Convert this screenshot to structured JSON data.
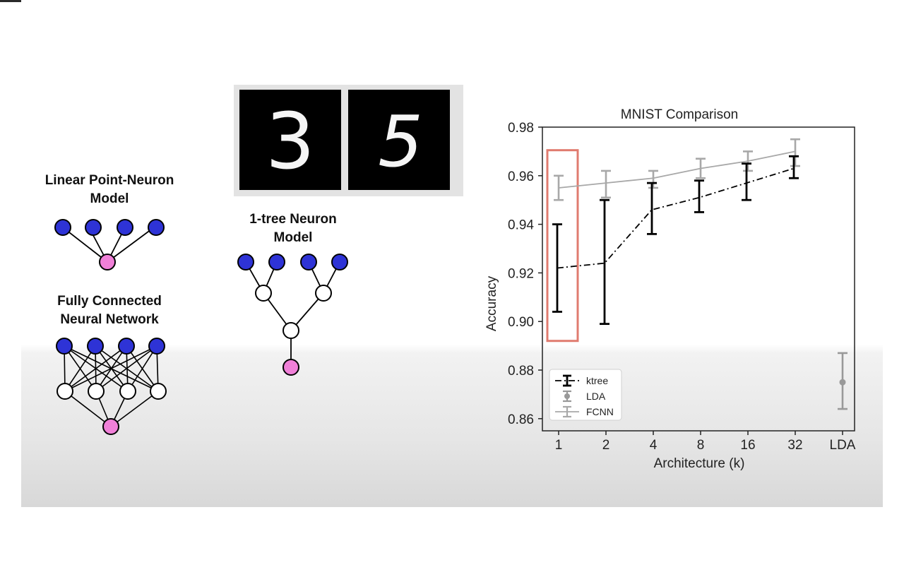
{
  "diagram": {
    "linear_label": [
      "Linear Point-Neuron",
      "Model"
    ],
    "fcnn_label": [
      "Fully Connected",
      "Neural Network"
    ],
    "tree_label": [
      "1-tree Neuron",
      "Model"
    ],
    "digit_1": "3",
    "digit_2": "5",
    "colors": {
      "input": "#2e33d6",
      "output": "#f080d8",
      "hidden": "#ffffff"
    }
  },
  "chart_data": {
    "type": "line",
    "title": "MNIST Comparison",
    "xlabel": "Architecture (k)",
    "ylabel": "Accuracy",
    "categories": [
      "1",
      "2",
      "4",
      "8",
      "16",
      "32",
      "LDA"
    ],
    "yticks": [
      "0.86",
      "0.88",
      "0.90",
      "0.92",
      "0.94",
      "0.96",
      "0.98"
    ],
    "ylim": [
      0.855,
      0.98
    ],
    "grid": false,
    "legend_position": "lower-left",
    "series": [
      {
        "name": "ktree",
        "style": "dash-dot",
        "color": "#000000",
        "values": [
          0.922,
          0.924,
          0.946,
          0.951,
          0.957,
          0.963,
          null
        ],
        "err_low": [
          0.904,
          0.899,
          0.936,
          0.945,
          0.95,
          0.959,
          null
        ],
        "err_high": [
          0.94,
          0.95,
          0.957,
          0.958,
          0.965,
          0.968,
          null
        ]
      },
      {
        "name": "LDA",
        "style": "point",
        "color": "#999999",
        "values": [
          null,
          null,
          null,
          null,
          null,
          null,
          0.875
        ],
        "err_low": [
          null,
          null,
          null,
          null,
          null,
          null,
          0.864
        ],
        "err_high": [
          null,
          null,
          null,
          null,
          null,
          null,
          0.887
        ]
      },
      {
        "name": "FCNN",
        "style": "solid",
        "color": "#a8a8a8",
        "values": [
          0.955,
          0.957,
          0.959,
          0.963,
          0.966,
          0.97,
          null
        ],
        "err_low": [
          0.95,
          0.951,
          0.955,
          0.959,
          0.962,
          0.964,
          null
        ],
        "err_high": [
          0.96,
          0.962,
          0.962,
          0.967,
          0.97,
          0.975,
          null
        ]
      }
    ],
    "highlight": {
      "category": "1",
      "color": "#e07b6f"
    }
  }
}
